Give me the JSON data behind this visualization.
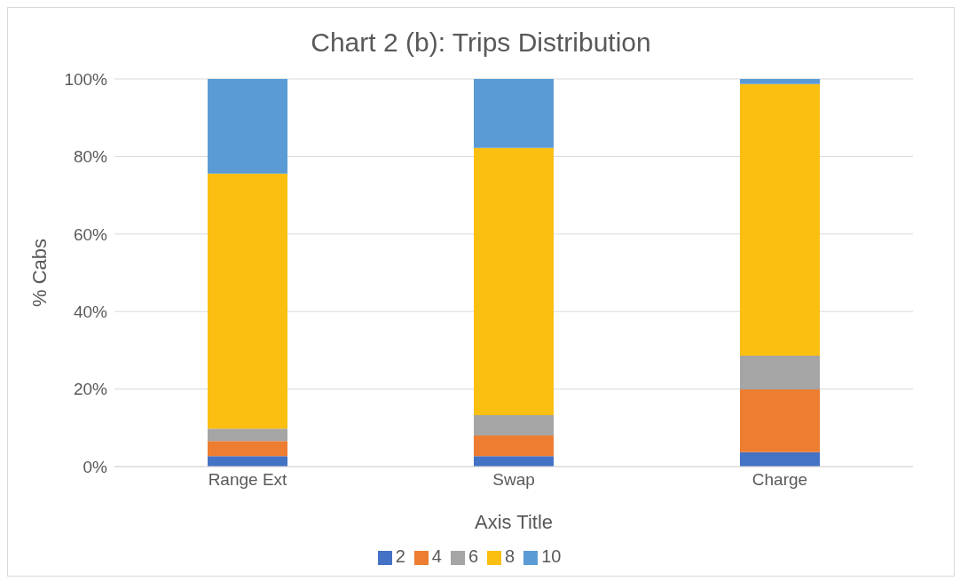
{
  "chart_data": {
    "type": "bar",
    "title": "Chart 2 (b): Trips Distribution",
    "xlabel": "Axis Title",
    "ylabel": "% Cabs",
    "categories": [
      "Range Ext",
      "Swap",
      "Charge"
    ],
    "series": [
      {
        "name": "2",
        "color": "#4472c4",
        "values": [
          2.7,
          2.7,
          3.7
        ]
      },
      {
        "name": "4",
        "color": "#ed7d31",
        "values": [
          3.9,
          5.3,
          16.2
        ]
      },
      {
        "name": "6",
        "color": "#a5a5a5",
        "values": [
          3.2,
          5.3,
          8.7
        ]
      },
      {
        "name": "8",
        "color": "#fbbf12",
        "values": [
          65.8,
          68.9,
          70.1
        ]
      },
      {
        "name": "10",
        "color": "#5b9bd5",
        "values": [
          24.4,
          17.8,
          1.3
        ]
      }
    ],
    "stacked": true,
    "ylim": [
      0,
      100
    ],
    "yticks": [
      {
        "value": 0,
        "label": "0%"
      },
      {
        "value": 20,
        "label": "20%"
      },
      {
        "value": 40,
        "label": "40%"
      },
      {
        "value": 60,
        "label": "60%"
      },
      {
        "value": 80,
        "label": "80%"
      },
      {
        "value": 100,
        "label": "100%"
      }
    ],
    "grid": "y",
    "legend": "bottom"
  }
}
